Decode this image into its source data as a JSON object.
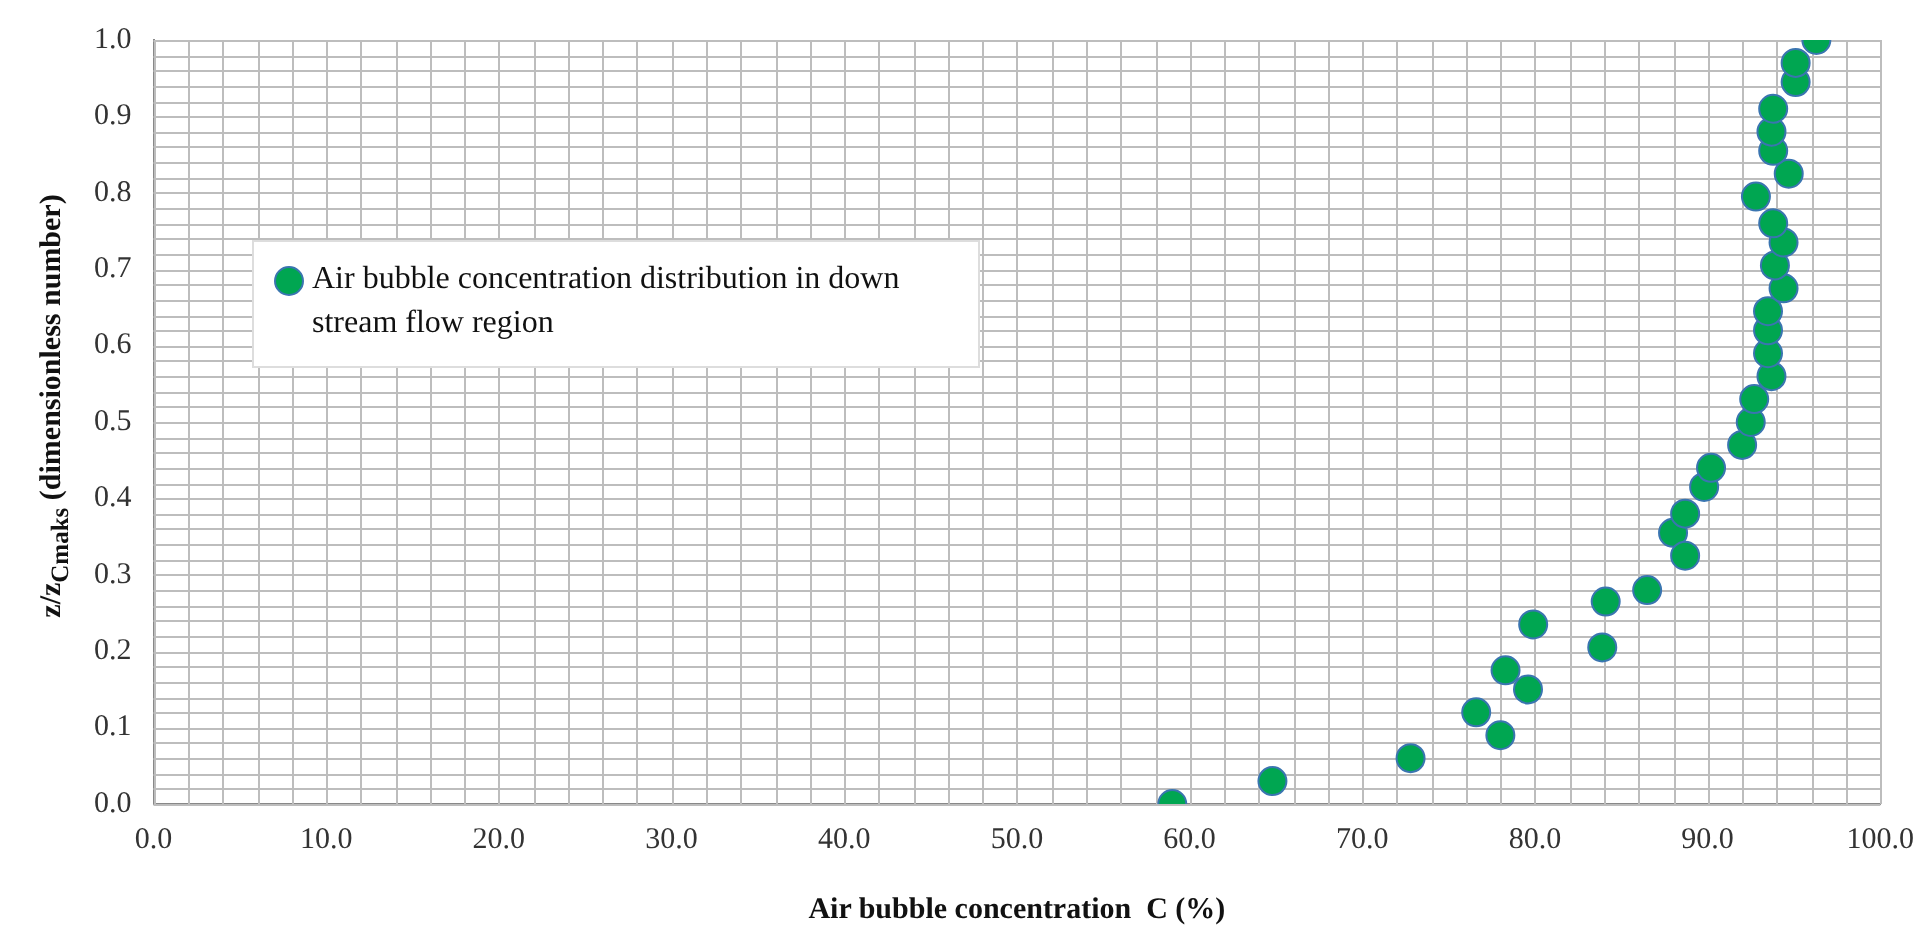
{
  "chart_data": {
    "type": "scatter",
    "xlabel": "Air bubble concentration  C (%)",
    "ylabel": "z/z$_{Cmaks}$ (dimensionless number)",
    "x": [
      59.0,
      64.8,
      72.8,
      76.6,
      78.0,
      78.3,
      79.6,
      79.9,
      83.9,
      84.1,
      86.5,
      88.0,
      88.7,
      88.7,
      89.8,
      90.2,
      92.0,
      92.5,
      92.7,
      93.7,
      93.5,
      93.5,
      93.5,
      94.4,
      93.9,
      94.4,
      93.8,
      92.8,
      94.7,
      93.8,
      93.7,
      93.8,
      95.1,
      95.1,
      96.3
    ],
    "series": [
      {
        "name": "Air bubble concentration distribution in down stream flow region",
        "color": "#00a651",
        "values": [
          0.0,
          0.03,
          0.06,
          0.12,
          0.09,
          0.175,
          0.15,
          0.235,
          0.205,
          0.265,
          0.28,
          0.355,
          0.325,
          0.38,
          0.415,
          0.44,
          0.47,
          0.5,
          0.53,
          0.56,
          0.59,
          0.62,
          0.645,
          0.675,
          0.705,
          0.735,
          0.76,
          0.795,
          0.825,
          0.855,
          0.88,
          0.91,
          0.945,
          0.97,
          1.0
        ]
      }
    ],
    "xlim": [
      0,
      100
    ],
    "xticks": [
      {
        "value": 0,
        "label": "0.0"
      },
      {
        "value": 10,
        "label": "10.0"
      },
      {
        "value": 20,
        "label": "20.0"
      },
      {
        "value": 30,
        "label": "30.0"
      },
      {
        "value": 40,
        "label": "40.0"
      },
      {
        "value": 50,
        "label": "50.0"
      },
      {
        "value": 60,
        "label": "60.0"
      },
      {
        "value": 70,
        "label": "70.0"
      },
      {
        "value": 80,
        "label": "80.0"
      },
      {
        "value": 90,
        "label": "90.0"
      },
      {
        "value": 100,
        "label": "100.0"
      }
    ],
    "ylim": [
      0,
      1
    ],
    "yticks": [
      {
        "value": 0,
        "label": "0.0"
      },
      {
        "value": 0.1,
        "label": "0.1"
      },
      {
        "value": 0.2,
        "label": "0.2"
      },
      {
        "value": 0.3,
        "label": "0.3"
      },
      {
        "value": 0.4,
        "label": "0.4"
      },
      {
        "value": 0.5,
        "label": "0.5"
      },
      {
        "value": 0.6,
        "label": "0.6"
      },
      {
        "value": 0.7,
        "label": "0.7"
      },
      {
        "value": 0.8,
        "label": "0.8"
      },
      {
        "value": 0.9,
        "label": "0.9"
      },
      {
        "value": 1,
        "label": "1.0"
      }
    ],
    "grid": true,
    "legend": "top left",
    "marker": "circle"
  }
}
